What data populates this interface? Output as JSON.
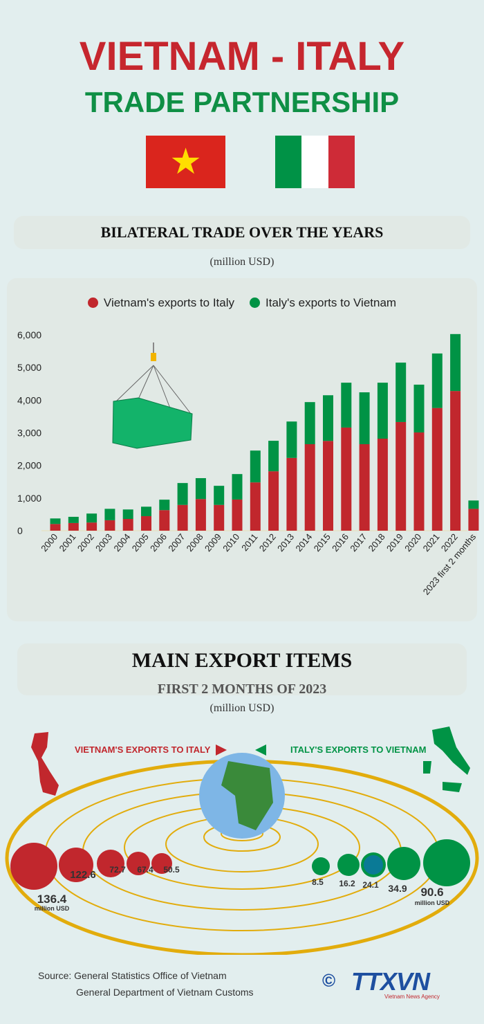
{
  "header": {
    "title": "VIETNAM - ITALY",
    "subtitle": "TRADE PARTNERSHIP"
  },
  "section1": {
    "title": "BILATERAL TRADE OVER THE YEARS",
    "unit": "(million USD)"
  },
  "colors": {
    "vietnam_exports": "#c1272d",
    "italy_exports": "#009345",
    "title_red": "#c6262e",
    "title_green": "#0f8f45"
  },
  "chart_data": {
    "type": "bar",
    "stacked": true,
    "categories": [
      "2000",
      "2001",
      "2002",
      "2003",
      "2004",
      "2005",
      "2006",
      "2007",
      "2008",
      "2009",
      "2010",
      "2011",
      "2012",
      "2013",
      "2014",
      "2015",
      "2016",
      "2017",
      "2018",
      "2019",
      "2020",
      "2021",
      "2022",
      "2023 first 2 months"
    ],
    "series": [
      {
        "name": "Vietnam's exports to Italy",
        "values": [
          205,
          235,
          250,
          320,
          360,
          445,
          630,
          790,
          970,
          790,
          955,
          1480,
          1820,
          2230,
          2650,
          2750,
          3160,
          2650,
          2820,
          3330,
          3010,
          3760,
          4280,
          670
        ]
      },
      {
        "name": "Italy's exports to Vietnam",
        "values": [
          170,
          190,
          275,
          350,
          290,
          290,
          320,
          670,
          640,
          585,
          780,
          975,
          935,
          1115,
          1290,
          1400,
          1375,
          1590,
          1715,
          1820,
          1465,
          1670,
          1745,
          255
        ]
      }
    ],
    "ylim": [
      0,
      6000
    ],
    "yticks": [
      "0",
      "1,000",
      "2,000",
      "3,000",
      "4,000",
      "5,000",
      "6,000"
    ],
    "legend": "top",
    "grid": false,
    "xlabel": "",
    "ylabel": ""
  },
  "section2": {
    "title": "MAIN EXPORT ITEMS",
    "subtitle": "FIRST 2 MONTHS OF 2023",
    "unit": "(million USD)",
    "vn_label": "VIETNAM'S EXPORTS TO ITALY",
    "it_label": "ITALY'S EXPORTS TO VIETNAM",
    "vn_items": [
      {
        "value": "136.4",
        "icon": "phone-icon"
      },
      {
        "value": "122.6",
        "icon": "machinery-icon"
      },
      {
        "value": "72.7",
        "icon": "coffee-icon"
      },
      {
        "value": "67.4",
        "icon": "circle-icon"
      },
      {
        "value": "50.5",
        "icon": "shoe-icon"
      }
    ],
    "it_items": [
      {
        "value": "8.5",
        "icon": "cosmetics-icon"
      },
      {
        "value": "16.2",
        "icon": "fabric-icon"
      },
      {
        "value": "24.1",
        "icon": "circle-icon"
      },
      {
        "value": "34.9",
        "icon": "pills-icon"
      },
      {
        "value": "90.6",
        "icon": "gears-icon"
      }
    ],
    "unit_label": "million USD"
  },
  "footer": {
    "source1": "Source: General Statistics Office of Vietnam",
    "source2": "General Department of Vietnam Customs",
    "logo": "TTXVN",
    "logo_sub": "Vietnam News Agency"
  }
}
